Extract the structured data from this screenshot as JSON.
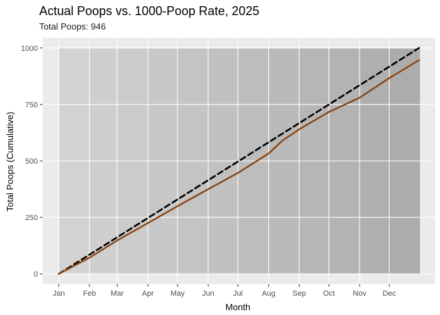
{
  "chart_data": {
    "type": "line",
    "title": "Actual Poops vs. 1000-Poop Rate, 2025",
    "subtitle": "Total Poops: 946",
    "xlabel": "Month",
    "ylabel": "Total Poops (Cumulative)",
    "x_tick_labels": [
      "Jan",
      "Feb",
      "Mar",
      "Apr",
      "May",
      "Jun",
      "Jul",
      "Aug",
      "Sep",
      "Oct",
      "Nov",
      "Dec"
    ],
    "y_ticks": [
      0,
      250,
      500,
      750,
      1000
    ],
    "xlim": [
      "2025-01-01",
      "2025-12-31"
    ],
    "ylim": [
      0,
      1000
    ],
    "grid": true,
    "month_bands": true,
    "series": [
      {
        "style": "dashed",
        "color": "#000000",
        "x": [
          "2025-01-01",
          "2025-12-31"
        ],
        "values": [
          0,
          1000
        ]
      },
      {
        "style": "solid",
        "color": "#8b4513",
        "x": [
          "2025-01-01",
          "2025-02-01",
          "2025-03-01",
          "2025-04-01",
          "2025-05-01",
          "2025-06-01",
          "2025-07-01",
          "2025-08-01",
          "2025-08-15",
          "2025-09-01",
          "2025-10-01",
          "2025-11-01",
          "2025-12-01",
          "2025-12-31"
        ],
        "values": [
          0,
          72,
          148,
          225,
          300,
          375,
          447,
          533,
          590,
          640,
          717,
          780,
          867,
          946
        ]
      }
    ]
  }
}
